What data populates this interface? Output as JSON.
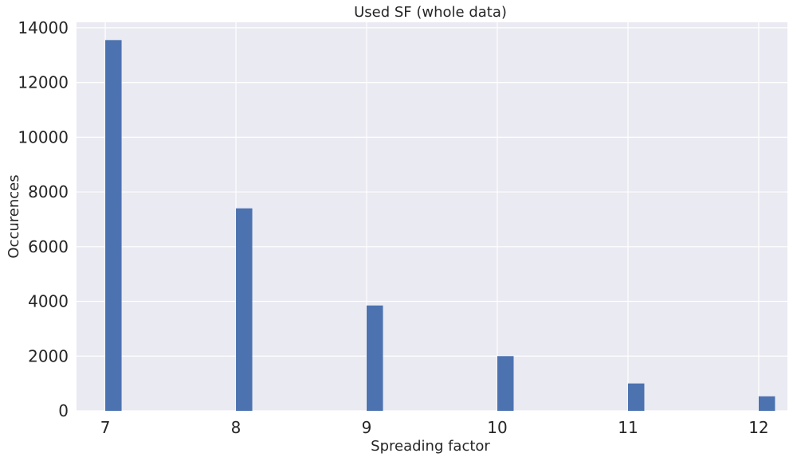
{
  "chart_data": {
    "type": "bar",
    "title": "Used SF (whole data)",
    "xlabel": "Spreading factor",
    "ylabel": "Occurences",
    "x": [
      7,
      8,
      9,
      10,
      11,
      12
    ],
    "values": [
      13550,
      7400,
      3850,
      2000,
      1000,
      530
    ],
    "xlim": [
      6.78,
      12.22
    ],
    "ylim": [
      0,
      14200
    ],
    "xticks": [
      7,
      8,
      9,
      10,
      11,
      12
    ],
    "yticks": [
      0,
      2000,
      4000,
      6000,
      8000,
      10000,
      12000,
      14000
    ],
    "grid": true,
    "bar_color": "#4c72b0",
    "background_color": "#eaeaf2",
    "grid_color": "#ffffff"
  }
}
